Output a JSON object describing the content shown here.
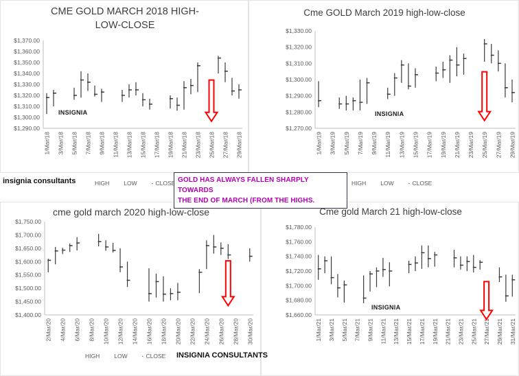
{
  "labels": {
    "insignia_consultants_lowercase": "insignia consultants",
    "insignia_consultants_uppercase": "INSIGNIA CONSULTANTS"
  },
  "annotation": {
    "line1": "GOLD HAS ALWAYS FALLEN SHARPLY TOWARDS",
    "line2": "THE END OF MARCH (FROM THE HIGHS.",
    "color": "#b300b3"
  },
  "legend": {
    "items": [
      {
        "label": "HIGH",
        "marker": ""
      },
      {
        "label": "LOW",
        "marker": ""
      },
      {
        "label": "CLOSE",
        "marker": "·"
      }
    ]
  },
  "colors": {
    "bar": "#3a3a3a",
    "arrow": "#ff0000",
    "axis": "#bfbfbf",
    "annotation_text": "#b300b3"
  },
  "chart_data": [
    {
      "type": "hlc",
      "title": "CME GOLD MARCH 2018 HIGH-LOW-CLOSE",
      "watermark": "INSIGNIA",
      "ylabel_format": "currency",
      "y_min": 1290,
      "y_max": 1370,
      "y_step": 10,
      "arrow_day": 25,
      "x_ticks": [
        "1/Mar/18",
        "3/Mar/18",
        "5/Mar/18",
        "7/Mar/18",
        "9/Mar/18",
        "11/Mar/18",
        "13/Mar/18",
        "15/Mar/18",
        "17/Mar/18",
        "19/Mar/18",
        "21/Mar/18",
        "23/Mar/18",
        "25/Mar/18",
        "27/Mar/18",
        "29/Mar/18"
      ],
      "days": [
        {
          "date": "1/Mar/18",
          "high": 1322,
          "low": 1303,
          "close": 1318
        },
        {
          "date": "2/Mar/18",
          "high": 1325,
          "low": 1310,
          "close": 1322
        },
        {
          "date": "5/Mar/18",
          "high": 1327,
          "low": 1316,
          "close": 1320
        },
        {
          "date": "6/Mar/18",
          "high": 1342,
          "low": 1318,
          "close": 1334
        },
        {
          "date": "7/Mar/18",
          "high": 1340,
          "low": 1324,
          "close": 1332
        },
        {
          "date": "8/Mar/18",
          "high": 1329,
          "low": 1319,
          "close": 1321
        },
        {
          "date": "9/Mar/18",
          "high": 1326,
          "low": 1314,
          "close": 1323
        },
        {
          "date": "12/Mar/18",
          "high": 1325,
          "low": 1314,
          "close": 1320
        },
        {
          "date": "13/Mar/18",
          "high": 1330,
          "low": 1318,
          "close": 1325
        },
        {
          "date": "14/Mar/18",
          "high": 1332,
          "low": 1320,
          "close": 1325
        },
        {
          "date": "15/Mar/18",
          "high": 1322,
          "low": 1310,
          "close": 1316
        },
        {
          "date": "16/Mar/18",
          "high": 1317,
          "low": 1307,
          "close": 1312
        },
        {
          "date": "19/Mar/18",
          "high": 1320,
          "low": 1308,
          "close": 1317
        },
        {
          "date": "20/Mar/18",
          "high": 1318,
          "low": 1306,
          "close": 1311
        },
        {
          "date": "21/Mar/18",
          "high": 1333,
          "low": 1307,
          "close": 1327
        },
        {
          "date": "22/Mar/18",
          "high": 1335,
          "low": 1321,
          "close": 1329
        },
        {
          "date": "23/Mar/18",
          "high": 1350,
          "low": 1323,
          "close": 1347
        },
        {
          "date": "26/Mar/18",
          "high": 1356,
          "low": 1340,
          "close": 1354
        },
        {
          "date": "27/Mar/18",
          "high": 1350,
          "low": 1332,
          "close": 1342
        },
        {
          "date": "28/Mar/18",
          "high": 1336,
          "low": 1320,
          "close": 1324
        },
        {
          "date": "29/Mar/18",
          "high": 1330,
          "low": 1317,
          "close": 1325
        }
      ]
    },
    {
      "type": "hlc",
      "title": "Cme GOLD March 2019 high-low-close",
      "watermark": "INSIGNIA",
      "ylabel_format": "currency",
      "y_min": 1270,
      "y_max": 1330,
      "y_step": 10,
      "arrow_day": 25,
      "x_ticks": [
        "1/Mar/19",
        "3/Mar/19",
        "5/Mar/19",
        "7/Mar/19",
        "9/Mar/19",
        "11/Mar/19",
        "13/Mar/19",
        "15/Mar/19",
        "17/Mar/19",
        "19/Mar/19",
        "21/Mar/19",
        "23/Mar/19",
        "25/Mar/19",
        "27/Mar/19",
        "29/Mar/19"
      ],
      "days": [
        {
          "date": "1/Mar/19",
          "high": 1299,
          "low": 1283,
          "close": 1287
        },
        {
          "date": "4/Mar/19",
          "high": 1289,
          "low": 1282,
          "close": 1285
        },
        {
          "date": "5/Mar/19",
          "high": 1290,
          "low": 1281,
          "close": 1285
        },
        {
          "date": "6/Mar/19",
          "high": 1289,
          "low": 1281,
          "close": 1287
        },
        {
          "date": "7/Mar/19",
          "high": 1300,
          "low": 1281,
          "close": 1286
        },
        {
          "date": "8/Mar/19",
          "high": 1301,
          "low": 1285,
          "close": 1298
        },
        {
          "date": "11/Mar/19",
          "high": 1295,
          "low": 1288,
          "close": 1291
        },
        {
          "date": "12/Mar/19",
          "high": 1304,
          "low": 1290,
          "close": 1301
        },
        {
          "date": "13/Mar/19",
          "high": 1312,
          "low": 1298,
          "close": 1309
        },
        {
          "date": "14/Mar/19",
          "high": 1310,
          "low": 1294,
          "close": 1296
        },
        {
          "date": "15/Mar/19",
          "high": 1307,
          "low": 1295,
          "close": 1303
        },
        {
          "date": "18/Mar/19",
          "high": 1308,
          "low": 1299,
          "close": 1304
        },
        {
          "date": "19/Mar/19",
          "high": 1311,
          "low": 1301,
          "close": 1306
        },
        {
          "date": "20/Mar/19",
          "high": 1315,
          "low": 1298,
          "close": 1312
        },
        {
          "date": "21/Mar/19",
          "high": 1320,
          "low": 1302,
          "close": 1309
        },
        {
          "date": "22/Mar/19",
          "high": 1316,
          "low": 1303,
          "close": 1313
        },
        {
          "date": "25/Mar/19",
          "high": 1325,
          "low": 1311,
          "close": 1322
        },
        {
          "date": "26/Mar/19",
          "high": 1322,
          "low": 1310,
          "close": 1315
        },
        {
          "date": "27/Mar/19",
          "high": 1318,
          "low": 1305,
          "close": 1310
        },
        {
          "date": "28/Mar/19",
          "high": 1310,
          "low": 1289,
          "close": 1295
        },
        {
          "date": "29/Mar/19",
          "high": 1300,
          "low": 1286,
          "close": 1292
        }
      ]
    },
    {
      "type": "hlc",
      "title": "cme gold march 2020 high-low-close",
      "ylabel_format": "currency",
      "y_min": 1400,
      "y_max": 1750,
      "y_step": 50,
      "arrow_day": 27,
      "x_ticks": [
        "2/Mar/20",
        "4/Mar/20",
        "6/Mar/20",
        "8/Mar/20",
        "10/Mar/20",
        "12/Mar/20",
        "14/Mar/20",
        "16/Mar/20",
        "18/Mar/20",
        "20/Mar/20",
        "22/Mar/20",
        "24/Mar/20",
        "26/Mar/20",
        "28/Mar/20",
        "30/Mar/20"
      ],
      "days": [
        {
          "date": "2/Mar/20",
          "high": 1610,
          "low": 1560,
          "close": 1605
        },
        {
          "date": "3/Mar/20",
          "high": 1655,
          "low": 1590,
          "close": 1640
        },
        {
          "date": "4/Mar/20",
          "high": 1652,
          "low": 1628,
          "close": 1643
        },
        {
          "date": "5/Mar/20",
          "high": 1668,
          "low": 1636,
          "close": 1660
        },
        {
          "date": "6/Mar/20",
          "high": 1692,
          "low": 1642,
          "close": 1670
        },
        {
          "date": "9/Mar/20",
          "high": 1704,
          "low": 1657,
          "close": 1675
        },
        {
          "date": "10/Mar/20",
          "high": 1680,
          "low": 1641,
          "close": 1655
        },
        {
          "date": "11/Mar/20",
          "high": 1670,
          "low": 1634,
          "close": 1642
        },
        {
          "date": "12/Mar/20",
          "high": 1650,
          "low": 1560,
          "close": 1580
        },
        {
          "date": "13/Mar/20",
          "high": 1600,
          "low": 1505,
          "close": 1530
        },
        {
          "date": "16/Mar/20",
          "high": 1575,
          "low": 1450,
          "close": 1480
        },
        {
          "date": "17/Mar/20",
          "high": 1555,
          "low": 1465,
          "close": 1525
        },
        {
          "date": "18/Mar/20",
          "high": 1545,
          "low": 1450,
          "close": 1478
        },
        {
          "date": "19/Mar/20",
          "high": 1500,
          "low": 1455,
          "close": 1480
        },
        {
          "date": "20/Mar/20",
          "high": 1520,
          "low": 1455,
          "close": 1485
        },
        {
          "date": "23/Mar/20",
          "high": 1572,
          "low": 1482,
          "close": 1560
        },
        {
          "date": "24/Mar/20",
          "high": 1680,
          "low": 1572,
          "close": 1660
        },
        {
          "date": "25/Mar/20",
          "high": 1700,
          "low": 1630,
          "close": 1655
        },
        {
          "date": "26/Mar/20",
          "high": 1672,
          "low": 1625,
          "close": 1650
        },
        {
          "date": "27/Mar/20",
          "high": 1665,
          "low": 1610,
          "close": 1625
        },
        {
          "date": "30/Mar/20",
          "high": 1650,
          "low": 1600,
          "close": 1620
        }
      ]
    },
    {
      "type": "hlc",
      "title": "Cme gold March 21 high-low-close",
      "watermark": "INSIGNIA",
      "ylabel_format": "currency",
      "y_min": 1660,
      "y_max": 1780,
      "y_step": 20,
      "arrow_day": 27,
      "x_ticks": [
        "1/Mar/21",
        "3/Mar/21",
        "5/Mar/21",
        "7/Mar/21",
        "9/Mar/21",
        "11/Mar/21",
        "13/Mar/21",
        "15/Mar/21",
        "17/Mar/21",
        "19/Mar/21",
        "21/Mar/21",
        "23/Mar/21",
        "25/Mar/21",
        "27/Mar/21",
        "29/Mar/21",
        "31/Mar/21"
      ],
      "days": [
        {
          "date": "1/Mar/21",
          "high": 1742,
          "low": 1708,
          "close": 1723
        },
        {
          "date": "2/Mar/21",
          "high": 1740,
          "low": 1717,
          "close": 1734
        },
        {
          "date": "3/Mar/21",
          "high": 1740,
          "low": 1702,
          "close": 1711
        },
        {
          "date": "4/Mar/21",
          "high": 1716,
          "low": 1684,
          "close": 1697
        },
        {
          "date": "5/Mar/21",
          "high": 1707,
          "low": 1677,
          "close": 1701
        },
        {
          "date": "8/Mar/21",
          "high": 1714,
          "low": 1676,
          "close": 1683
        },
        {
          "date": "9/Mar/21",
          "high": 1720,
          "low": 1692,
          "close": 1716
        },
        {
          "date": "10/Mar/21",
          "high": 1725,
          "low": 1698,
          "close": 1720
        },
        {
          "date": "11/Mar/21",
          "high": 1738,
          "low": 1712,
          "close": 1722
        },
        {
          "date": "12/Mar/21",
          "high": 1732,
          "low": 1699,
          "close": 1720
        },
        {
          "date": "15/Mar/21",
          "high": 1734,
          "low": 1717,
          "close": 1729
        },
        {
          "date": "16/Mar/21",
          "high": 1740,
          "low": 1720,
          "close": 1731
        },
        {
          "date": "17/Mar/21",
          "high": 1755,
          "low": 1723,
          "close": 1745
        },
        {
          "date": "18/Mar/21",
          "high": 1755,
          "low": 1725,
          "close": 1737
        },
        {
          "date": "19/Mar/21",
          "high": 1746,
          "low": 1726,
          "close": 1742
        },
        {
          "date": "22/Mar/21",
          "high": 1749,
          "low": 1725,
          "close": 1738
        },
        {
          "date": "23/Mar/21",
          "high": 1740,
          "low": 1722,
          "close": 1728
        },
        {
          "date": "24/Mar/21",
          "high": 1740,
          "low": 1720,
          "close": 1733
        },
        {
          "date": "25/Mar/21",
          "high": 1742,
          "low": 1718,
          "close": 1725
        },
        {
          "date": "26/Mar/21",
          "high": 1735,
          "low": 1722,
          "close": 1732
        },
        {
          "date": "29/Mar/21",
          "high": 1725,
          "low": 1705,
          "close": 1712
        },
        {
          "date": "30/Mar/21",
          "high": 1715,
          "low": 1678,
          "close": 1686
        },
        {
          "date": "31/Mar/21",
          "high": 1715,
          "low": 1685,
          "close": 1708
        }
      ]
    }
  ]
}
